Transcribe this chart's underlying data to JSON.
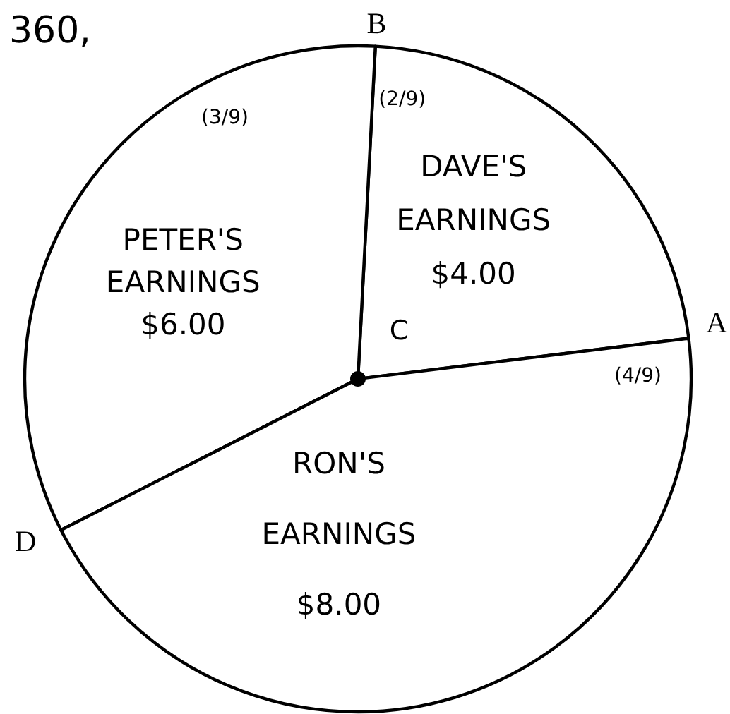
{
  "chart_data": {
    "type": "pie",
    "categories": [
      "DAVE'S EARNINGS",
      "PETER'S EARNINGS",
      "RON'S EARNINGS"
    ],
    "values": [
      4,
      6,
      8
    ],
    "value_labels": [
      "$4.00",
      "$6.00",
      "$8.00"
    ],
    "colors": [
      "#ffffff",
      "#ffffff",
      "#ffffff"
    ],
    "annotations": [
      "360,",
      "(2/9)",
      "(3/9)",
      "(4/9)",
      "A",
      "B",
      "C",
      "D"
    ]
  }
}
